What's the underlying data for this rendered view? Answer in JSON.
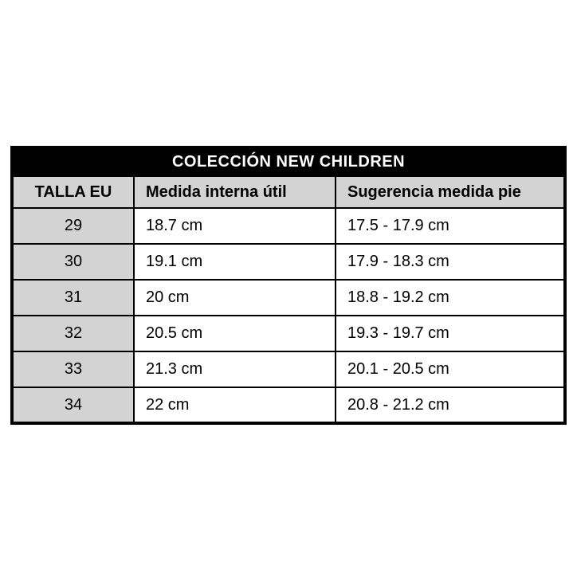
{
  "chart_data": {
    "type": "table",
    "title": "COLECCIÓN NEW CHILDREN",
    "columns": [
      "TALLA EU",
      "Medida interna útil",
      "Sugerencia medida pie"
    ],
    "rows": [
      [
        "29",
        "18.7 cm",
        "17.5 - 17.9 cm"
      ],
      [
        "30",
        "19.1 cm",
        "17.9 - 18.3 cm"
      ],
      [
        "31",
        "20 cm",
        "18.8 - 19.2 cm"
      ],
      [
        "32",
        "20.5 cm",
        "19.3 - 19.7 cm"
      ],
      [
        "33",
        "21.3 cm",
        "20.1 - 20.5 cm"
      ],
      [
        "34",
        "22 cm",
        "20.8 - 21.2 cm"
      ]
    ],
    "layout": {
      "legend": "none",
      "grid": "full black borders",
      "title_position": "top band"
    }
  },
  "colors": {
    "title_bg": "#000000",
    "title_text": "#ffffff",
    "header_bg": "#d3d3d3",
    "row_label_bg": "#d3d3d3",
    "cell_bg": "#ffffff",
    "border": "#000000",
    "page_bg": "#ffffff"
  }
}
